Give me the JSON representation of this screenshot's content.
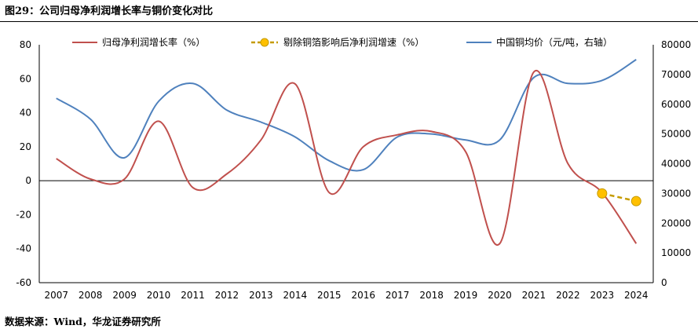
{
  "figure": {
    "title": "图29：公司归母净利润增长率与铜价变化对比",
    "source": "数据来源：Wind，华龙证券研究所"
  },
  "colors": {
    "profit_growth": "#c0504d",
    "adjusted_growth": "#c59b00",
    "adjusted_marker": "#ffc000",
    "copper_price": "#4f81bd"
  },
  "chart_data": {
    "type": "line",
    "x": [
      "2007",
      "2008",
      "2009",
      "2010",
      "2011",
      "2012",
      "2013",
      "2014",
      "2015",
      "2016",
      "2017",
      "2018",
      "2019",
      "2020",
      "2021",
      "2022",
      "2023",
      "2024"
    ],
    "series": [
      {
        "name": "归母净利润增长率（%）",
        "axis": "left",
        "values": [
          13,
          1,
          1,
          35,
          -4,
          4,
          24,
          57,
          -7,
          20,
          27,
          29,
          17,
          -37,
          64,
          10,
          -7,
          -37
        ]
      },
      {
        "name": "剔除铜箔影响后净利润增速（%）",
        "axis": "left",
        "style": "dashed-with-markers",
        "values": [
          null,
          null,
          null,
          null,
          null,
          null,
          null,
          null,
          null,
          null,
          null,
          null,
          null,
          null,
          null,
          null,
          -7.5,
          -12
        ]
      },
      {
        "name": "中国铜均价（元/吨，右轴）",
        "axis": "right",
        "values": [
          62000,
          55000,
          42000,
          61000,
          67000,
          58000,
          54000,
          49000,
          41000,
          38000,
          49000,
          50000,
          48000,
          48000,
          69000,
          67000,
          68000,
          75000
        ]
      }
    ],
    "yleft": {
      "lim": [
        -60,
        80
      ],
      "ticks": [
        -60,
        -40,
        -20,
        0,
        20,
        40,
        60,
        80
      ]
    },
    "yright": {
      "lim": [
        0,
        80000
      ],
      "ticks": [
        0,
        10000,
        20000,
        30000,
        40000,
        50000,
        60000,
        70000,
        80000
      ]
    },
    "legend_position": "top",
    "grid": false
  }
}
